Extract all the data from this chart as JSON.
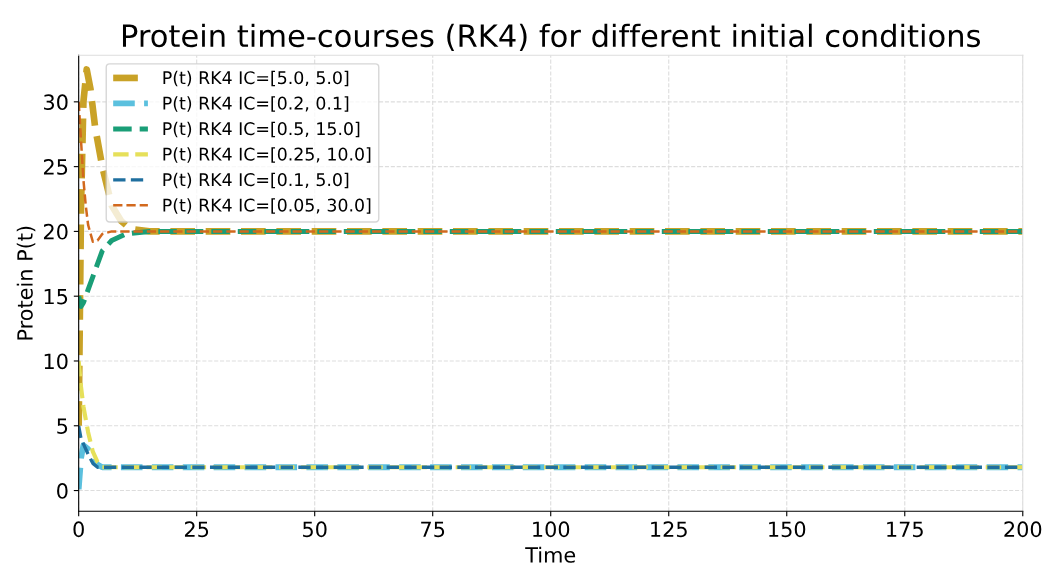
{
  "chart_data": {
    "type": "line",
    "title": "Protein time-courses (RK4) for different initial conditions",
    "xlabel": "Time",
    "ylabel": "Protein P(t)",
    "xlim": [
      0,
      200
    ],
    "xticks": [
      0,
      25,
      50,
      75,
      100,
      125,
      150,
      175,
      200
    ],
    "ylim": [
      -1.6,
      33.6
    ],
    "yticks": [
      0,
      5,
      10,
      15,
      20,
      25,
      30
    ],
    "grid": true,
    "legend": "top left",
    "line_style": "dashed",
    "marker": "none",
    "series": [
      {
        "name": "P(t) RK4 IC=[5.0, 5.0]",
        "color": "#c9a227",
        "x": [
          0,
          0.5,
          1,
          1.7,
          2.5,
          3.5,
          5,
          7,
          9,
          11,
          15,
          200
        ],
        "values": [
          5,
          22,
          30,
          32.5,
          31,
          28,
          25,
          22,
          20.8,
          20.2,
          20,
          20
        ]
      },
      {
        "name": "P(t) RK4 IC=[0.2, 0.1]",
        "color": "#5bc0de",
        "x": [
          0,
          0.5,
          1,
          2,
          3,
          4,
          5,
          200
        ],
        "values": [
          0.1,
          2.5,
          3.5,
          3.2,
          2.5,
          2,
          1.8,
          1.8
        ]
      },
      {
        "name": "P(t) RK4 IC=[0.5, 15.0]",
        "color": "#1a9e77",
        "x": [
          0,
          0.5,
          1,
          2,
          3,
          5,
          7,
          10,
          15,
          200
        ],
        "values": [
          15,
          14.2,
          14.5,
          15.5,
          16.5,
          18.5,
          19.3,
          19.8,
          20,
          20
        ]
      },
      {
        "name": "P(t) RK4 IC=[0.25, 10.0]",
        "color": "#e6e05a",
        "x": [
          0,
          0.5,
          1,
          2,
          3,
          4,
          5,
          200
        ],
        "values": [
          10,
          8,
          6.5,
          4.5,
          3,
          2.2,
          1.8,
          1.8
        ]
      },
      {
        "name": "P(t) RK4 IC=[0.1, 5.0]",
        "color": "#1f6f9f",
        "x": [
          0,
          0.5,
          1,
          2,
          3,
          4,
          200
        ],
        "values": [
          5,
          4,
          3.6,
          2.8,
          2.1,
          1.8,
          1.8
        ]
      },
      {
        "name": "P(t) RK4 IC=[0.05, 30.0]",
        "color": "#d2691e",
        "x": [
          0,
          0.5,
          1,
          1.5,
          2,
          3,
          4,
          5,
          7,
          200
        ],
        "values": [
          30,
          27,
          24,
          22,
          20.5,
          19.2,
          19.3,
          19.8,
          20,
          20
        ]
      }
    ]
  }
}
